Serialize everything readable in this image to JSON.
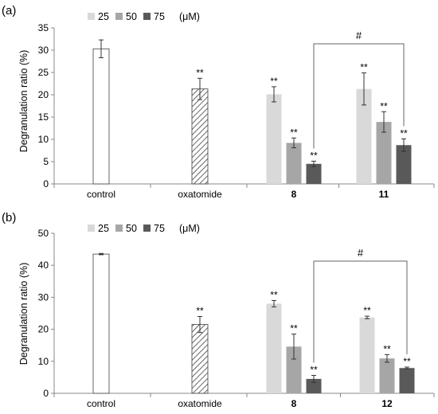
{
  "chart_data": [
    {
      "panel_label": "(a)",
      "type": "bar",
      "ylabel": "Degranulation ratio (%)",
      "ylim": [
        0,
        35
      ],
      "yticks": [
        0,
        5,
        10,
        15,
        20,
        25,
        30,
        35
      ],
      "categories": [
        "control",
        "oxatomide",
        "8",
        "11"
      ],
      "bold_categories": [
        "8",
        "11"
      ],
      "legend": {
        "entries": [
          "25",
          "50",
          "75"
        ],
        "unit": "(μM)",
        "colors": [
          "#d9d9d9",
          "#a6a6a6",
          "#595959"
        ]
      },
      "bars": [
        {
          "category": "control",
          "series": "",
          "value": 30.3,
          "error": 2.0,
          "style": "open",
          "label": ""
        },
        {
          "category": "oxatomide",
          "series": "",
          "value": 21.3,
          "error": 2.4,
          "style": "hatch",
          "label": "**"
        },
        {
          "category": "8",
          "series": "25",
          "value": 20.1,
          "error": 1.7,
          "style": "light",
          "label": "**"
        },
        {
          "category": "8",
          "series": "50",
          "value": 9.2,
          "error": 1.1,
          "style": "mid",
          "label": "**"
        },
        {
          "category": "8",
          "series": "75",
          "value": 4.5,
          "error": 0.6,
          "style": "dark",
          "label": "**"
        },
        {
          "category": "11",
          "series": "25",
          "value": 21.3,
          "error": 3.6,
          "style": "light",
          "label": "**"
        },
        {
          "category": "11",
          "series": "50",
          "value": 13.9,
          "error": 2.3,
          "style": "mid",
          "label": "**"
        },
        {
          "category": "11",
          "series": "75",
          "value": 8.7,
          "error": 1.4,
          "style": "dark",
          "label": "**"
        }
      ],
      "bracket": {
        "label": "#",
        "from": "8 / 75",
        "to": "11 / 75"
      }
    },
    {
      "panel_label": "(b)",
      "type": "bar",
      "ylabel": "Degranulation ratio (%)",
      "ylim": [
        0,
        50
      ],
      "yticks": [
        0,
        10,
        20,
        30,
        40,
        50
      ],
      "categories": [
        "control",
        "oxatomide",
        "8",
        "12"
      ],
      "bold_categories": [
        "8",
        "12"
      ],
      "legend": {
        "entries": [
          "25",
          "50",
          "75"
        ],
        "unit": "(μM)",
        "colors": [
          "#d9d9d9",
          "#a6a6a6",
          "#595959"
        ]
      },
      "bars": [
        {
          "category": "control",
          "series": "",
          "value": 43.5,
          "error": 0.2,
          "style": "open",
          "label": ""
        },
        {
          "category": "oxatomide",
          "series": "",
          "value": 21.5,
          "error": 2.5,
          "style": "hatch",
          "label": "**"
        },
        {
          "category": "8",
          "series": "25",
          "value": 28.0,
          "error": 1.0,
          "style": "light",
          "label": "**"
        },
        {
          "category": "8",
          "series": "50",
          "value": 14.6,
          "error": 3.9,
          "style": "mid",
          "label": "**"
        },
        {
          "category": "8",
          "series": "75",
          "value": 4.5,
          "error": 1.1,
          "style": "dark",
          "label": "**"
        },
        {
          "category": "12",
          "series": "25",
          "value": 23.7,
          "error": 0.4,
          "style": "light",
          "label": "**"
        },
        {
          "category": "12",
          "series": "50",
          "value": 10.9,
          "error": 1.2,
          "style": "mid",
          "label": "**"
        },
        {
          "category": "12",
          "series": "75",
          "value": 7.9,
          "error": 0.3,
          "style": "dark",
          "label": "**"
        }
      ],
      "bracket": {
        "label": "#",
        "from": "8 / 75",
        "to": "12 / 75"
      }
    }
  ]
}
